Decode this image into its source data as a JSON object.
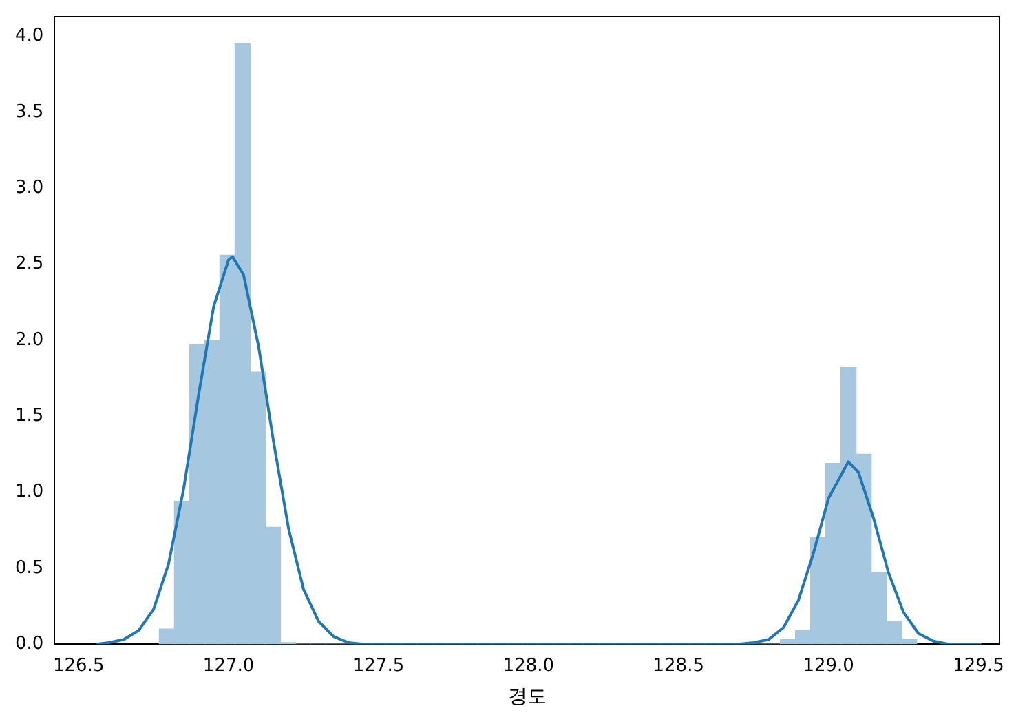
{
  "chart_data": {
    "type": "histogram",
    "xlabel": "경도",
    "bins": [
      126.769,
      126.8195,
      126.87,
      126.9205,
      126.971,
      127.0215,
      127.072,
      127.1225,
      127.173,
      127.2235,
      127.274,
      127.3245,
      127.375,
      127.4255,
      127.476,
      127.5265,
      127.577,
      127.6275,
      127.678,
      127.7285,
      127.779,
      127.8295,
      127.88,
      127.9305,
      127.981,
      128.0315,
      128.082,
      128.1325,
      128.183,
      128.2335,
      128.284,
      128.3345,
      128.385,
      128.4355,
      128.486,
      128.5365,
      128.587,
      128.6375,
      128.688,
      128.7385,
      128.789,
      128.8395,
      128.89,
      128.9405,
      128.991,
      129.0415,
      129.092,
      129.1425,
      129.193,
      129.2435,
      129.294
    ],
    "series": [
      {
        "color": "#a5c7e0",
        "values": [
          0.1,
          0.94,
          1.97,
          2.0,
          2.56,
          3.95,
          1.79,
          0.77,
          0.01,
          0,
          0,
          0,
          0,
          0,
          0,
          0,
          0,
          0,
          0,
          0,
          0,
          0,
          0,
          0,
          0,
          0,
          0,
          0,
          0,
          0,
          0,
          0,
          0,
          0,
          0,
          0,
          0,
          0,
          0,
          0,
          0,
          0.03,
          0.09,
          0.7,
          1.19,
          1.82,
          1.25,
          0.47,
          0.15,
          0.03
        ]
      },
      {
        "type": "line",
        "color": "#1f77b4",
        "x": [
          126.56,
          126.6,
          126.65,
          126.7,
          126.75,
          126.8,
          126.85,
          126.9,
          126.95,
          127.0,
          127.013,
          127.05,
          127.1,
          127.15,
          127.2,
          127.25,
          127.3,
          127.35,
          127.4,
          127.45,
          127.5,
          128.0,
          128.5,
          128.7,
          128.75,
          128.8,
          128.85,
          128.9,
          128.95,
          129.0,
          129.066,
          129.1,
          129.15,
          129.2,
          129.25,
          129.3,
          129.35,
          129.4,
          129.45,
          129.51
        ],
        "values": [
          0,
          0.01,
          0.03,
          0.09,
          0.23,
          0.53,
          1.02,
          1.64,
          2.22,
          2.53,
          2.55,
          2.43,
          1.96,
          1.33,
          0.76,
          0.36,
          0.15,
          0.05,
          0.01,
          0,
          0,
          0,
          0,
          0,
          0.01,
          0.03,
          0.11,
          0.29,
          0.6,
          0.96,
          1.2,
          1.13,
          0.83,
          0.47,
          0.21,
          0.07,
          0.02,
          0,
          0,
          0
        ]
      }
    ],
    "xlim": [
      126.42,
      129.57
    ],
    "xticks": [
      126.5,
      {
        "value": 127,
        "label": "127.0"
      },
      127.5,
      {
        "value": 128,
        "label": "128.0"
      },
      128.5,
      {
        "value": 129,
        "label": "129.0"
      },
      129.5
    ],
    "ylim": [
      0,
      4.13
    ],
    "yticks": [
      {
        "value": 0,
        "label": "0.0"
      },
      0.5,
      {
        "value": 1,
        "label": "1.0"
      },
      1.5,
      {
        "value": 2,
        "label": "2.0"
      },
      2.5,
      {
        "value": 3,
        "label": "3.0"
      },
      3.5,
      {
        "value": 4,
        "label": "4.0"
      }
    ],
    "grid": false,
    "legend": false
  }
}
